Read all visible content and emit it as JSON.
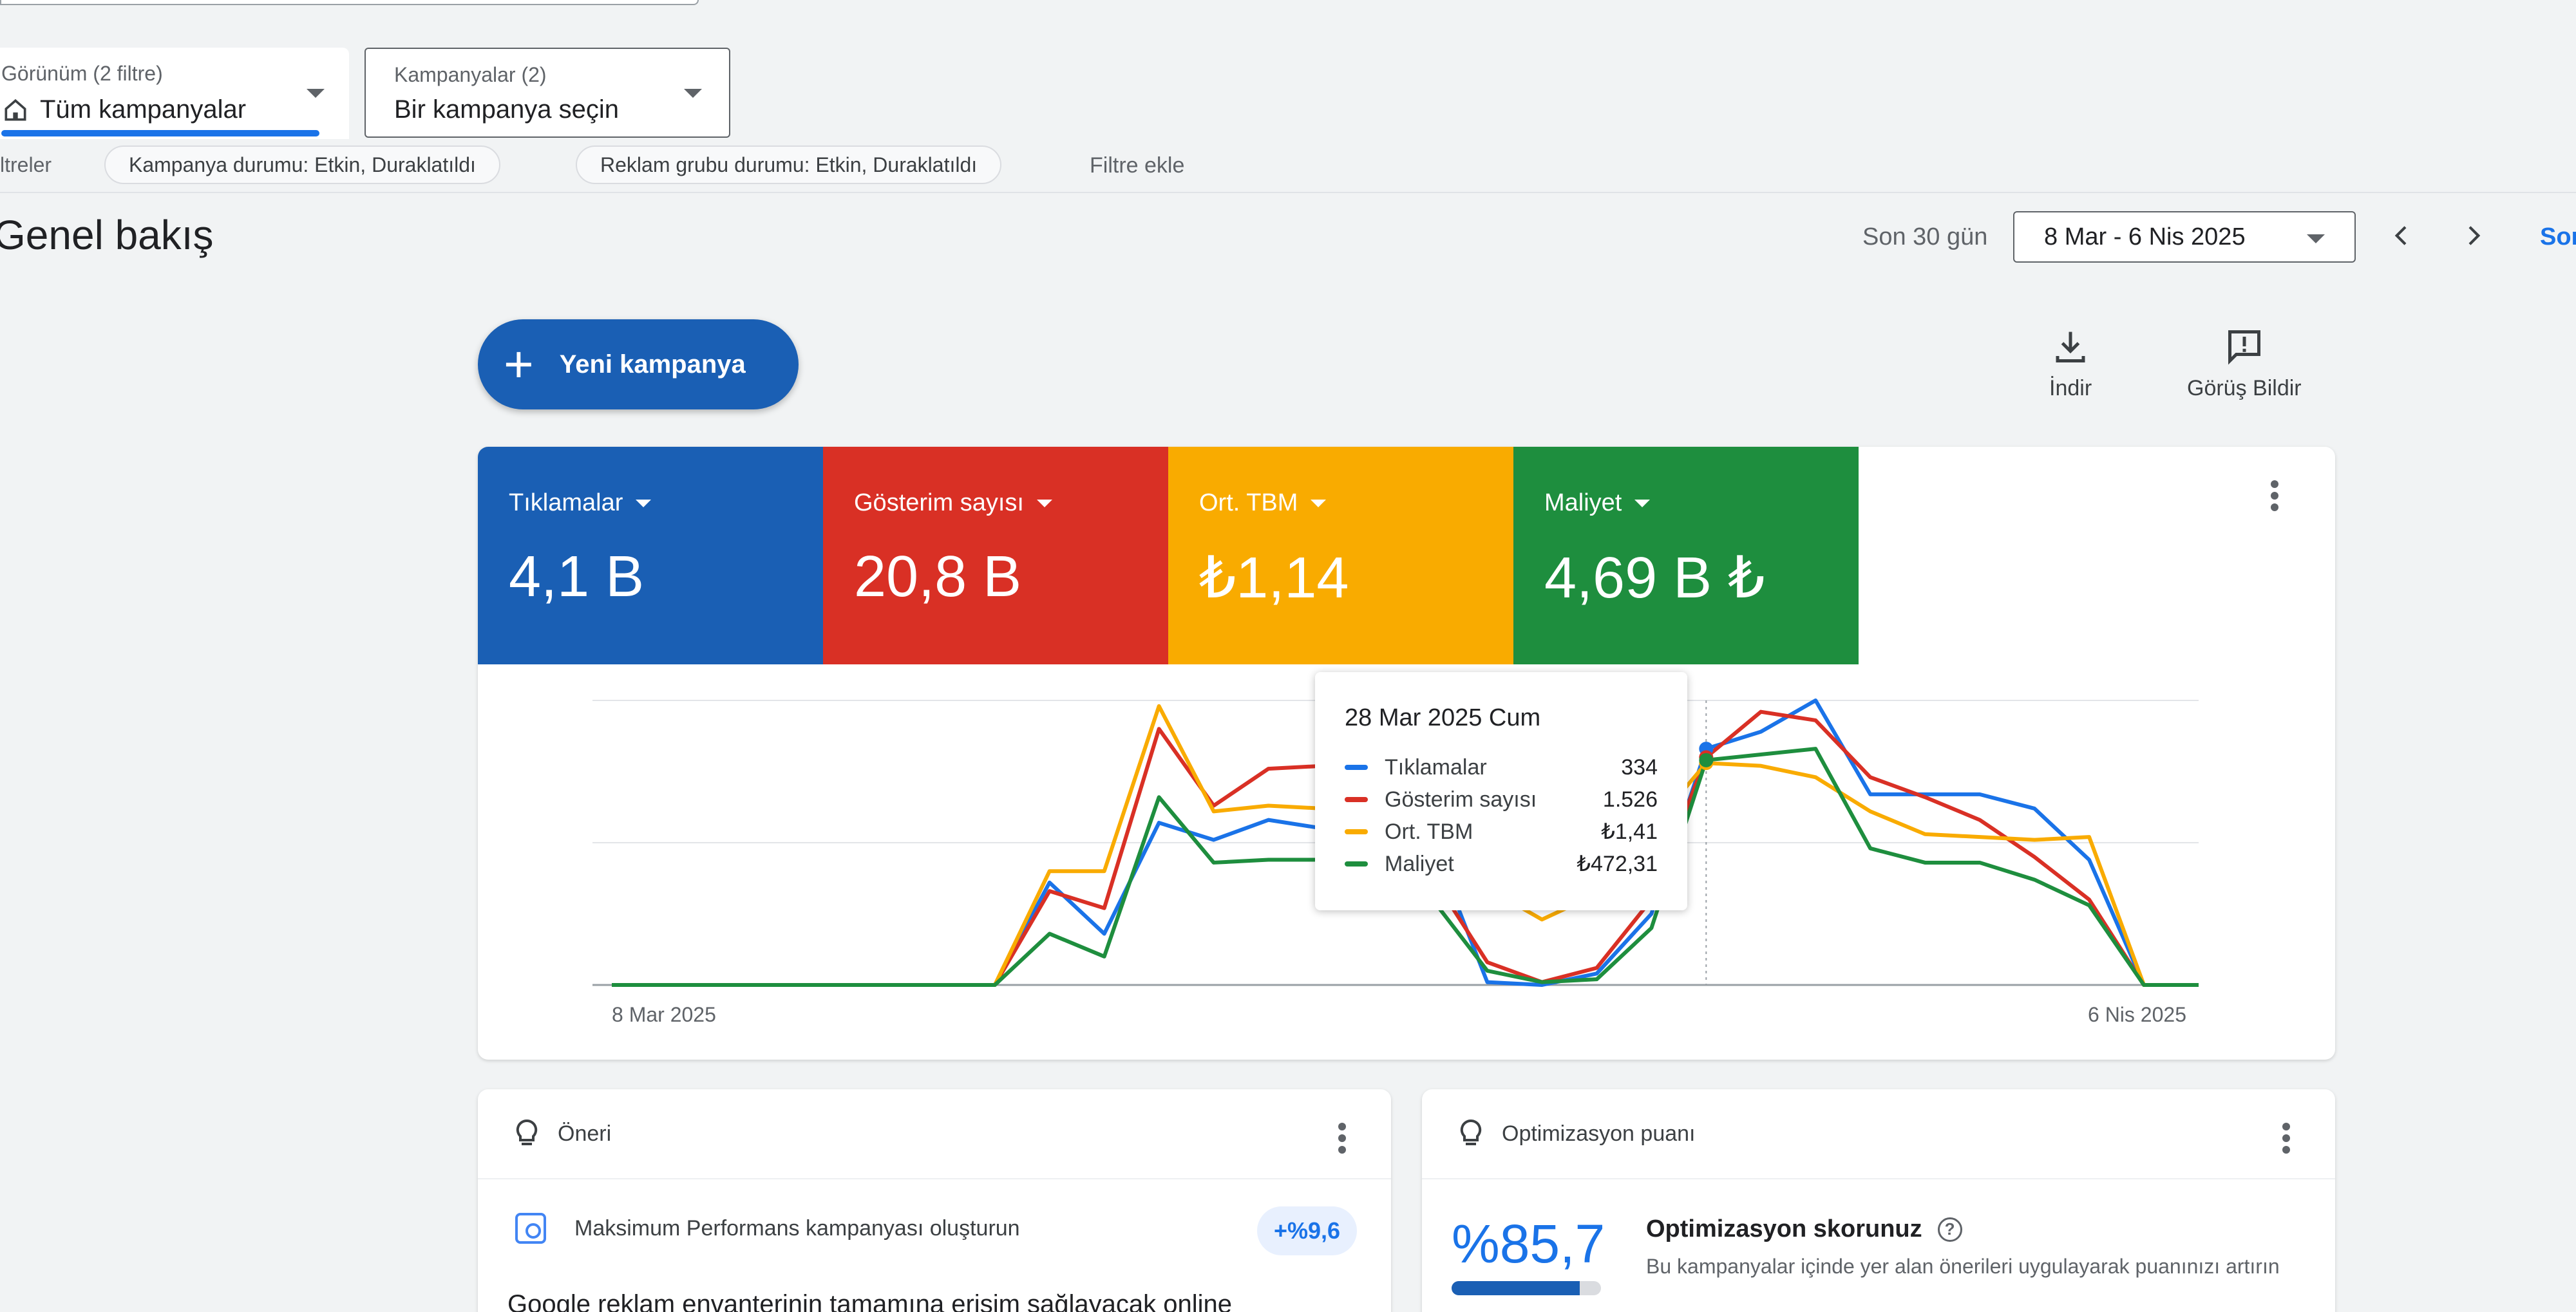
{
  "view_selector": {
    "caption": "Görünüm (2 filtre)",
    "value": "Tüm kampanyalar"
  },
  "campaign_selector": {
    "caption": "Kampanyalar (2)",
    "value": "Bir kampanya seçin"
  },
  "filters": {
    "label": "ltreler",
    "chips": [
      "Kampanya durumu: Etkin, Duraklatıldı",
      "Reklam grubu durumu: Etkin, Duraklatıldı"
    ],
    "add_label": "Filtre ekle"
  },
  "overview": {
    "title": "Genel bakış",
    "range_label": "Son 30 gün",
    "date_range": "8 Mar - 6 Nis 2025",
    "link": "Son"
  },
  "new_campaign_label": "Yeni kampanya",
  "tools": {
    "download": "İndir",
    "feedback": "Görüş Bildir"
  },
  "metrics": [
    {
      "label": "Tıklamalar",
      "value": "4,1 B",
      "color": "#1a5fb4"
    },
    {
      "label": "Gösterim sayısı",
      "value": "20,8 B",
      "color": "#d93025"
    },
    {
      "label": "Ort. TBM",
      "value": "₺1,14",
      "color": "#f9ab00"
    },
    {
      "label": "Maliyet",
      "value": "4,69 B ₺",
      "color": "#1e8e3e"
    }
  ],
  "chart_data": {
    "type": "line",
    "x_start": "8 Mar 2025",
    "x_end": "6 Nis 2025",
    "x_labels": [
      "8 Mar 2025",
      "6 Nis 2025"
    ],
    "grid": true,
    "series": [
      {
        "name": "Tıklamalar",
        "color": "#1a73e8",
        "values": [
          0,
          0,
          0,
          0,
          0,
          0,
          0,
          0,
          36,
          18,
          57,
          51,
          58,
          55,
          52,
          50,
          1,
          0,
          4,
          25,
          83,
          89,
          100,
          67,
          67,
          67,
          62,
          44,
          0,
          0
        ]
      },
      {
        "name": "Gösterim sayısı",
        "color": "#d93025",
        "values": [
          0,
          0,
          0,
          0,
          0,
          0,
          0,
          0,
          33,
          27,
          90,
          63,
          76,
          77,
          60,
          38,
          8,
          1,
          6,
          30,
          80,
          96,
          93,
          73,
          66,
          58,
          45,
          30,
          0,
          0
        ]
      },
      {
        "name": "Ort. TBM",
        "color": "#f9ab00",
        "values": [
          0,
          0,
          0,
          0,
          0,
          0,
          0,
          0,
          40,
          40,
          98,
          61,
          63,
          62,
          55,
          44,
          34,
          23,
          32,
          55,
          78,
          77,
          73,
          61,
          53,
          52,
          51,
          52,
          0,
          0
        ]
      },
      {
        "name": "Maliyet",
        "color": "#1e8e3e",
        "values": [
          0,
          0,
          0,
          0,
          0,
          0,
          0,
          0,
          18,
          10,
          66,
          43,
          44,
          44,
          45,
          30,
          5,
          1,
          2,
          20,
          79,
          81,
          83,
          48,
          43,
          43,
          37,
          28,
          0,
          0
        ]
      }
    ],
    "hover_index": 20
  },
  "tooltip": {
    "title": "28 Mar 2025 Cum",
    "rows": [
      {
        "name": "Tıklamalar",
        "value": "334",
        "color": "#1a73e8"
      },
      {
        "name": "Gösterim sayısı",
        "value": "1.526",
        "color": "#d93025"
      },
      {
        "name": "Ort. TBM",
        "value": "₺1,41",
        "color": "#f9ab00"
      },
      {
        "name": "Maliyet",
        "value": "₺472,31",
        "color": "#1e8e3e"
      }
    ]
  },
  "recommendation": {
    "title": "Öneri",
    "item": "Maksimum Performans kampanyası oluşturun",
    "badge": "+%9,6",
    "desc": "Google reklam envanterinin tamamına erişim sağlayacak online"
  },
  "optimization": {
    "title": "Optimizasyon puanı",
    "score": "%85,7",
    "score_fraction": 0.857,
    "heading": "Optimizasyon skorunuz",
    "desc": "Bu kampanyalar içinde yer alan önerileri uygulayarak puanınızı artırın"
  }
}
